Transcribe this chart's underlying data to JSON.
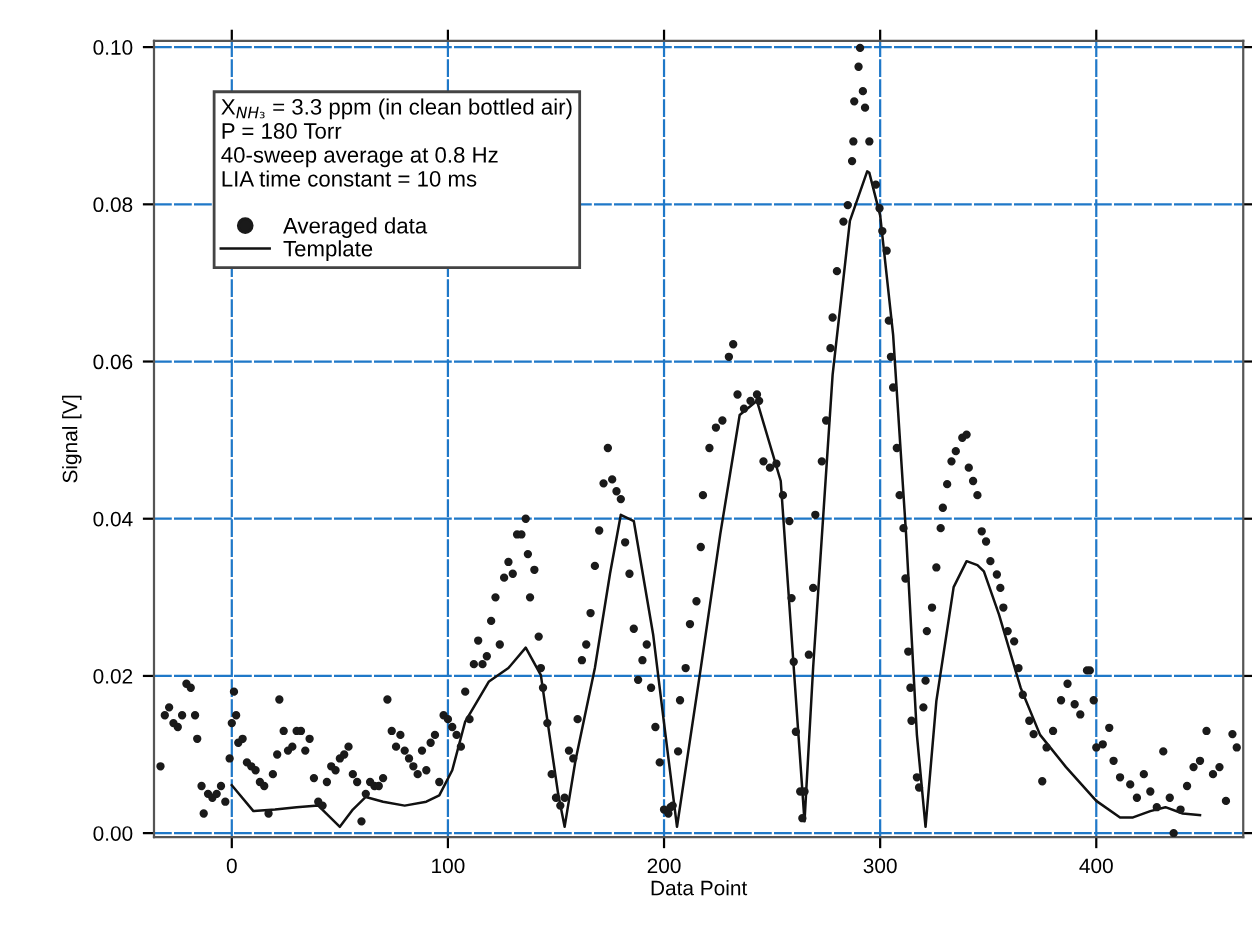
{
  "chart_data": {
    "type": "scatter",
    "xlabel": "Data Point",
    "ylabel": "Signal [V]",
    "xlim": [
      -36,
      468
    ],
    "ylim": [
      -0.0005,
      0.1008
    ],
    "xticks": [
      0,
      100,
      200,
      300,
      400
    ],
    "yticks": [
      {
        "value": 0,
        "label": "0.00"
      },
      {
        "value": 0.02,
        "label": "0.02"
      },
      {
        "value": 0.04,
        "label": "0.04"
      },
      {
        "value": 0.06,
        "label": "0.06"
      },
      {
        "value": 0.08,
        "label": "0.08"
      },
      {
        "value": 0.1,
        "label": "0.10"
      }
    ],
    "grid": true,
    "legend": "top left",
    "annotations": [
      "X$_{NH₃}$ = 3.3 ppm (in clean bottled air)",
      "P = 180 Torr",
      "40-sweep average at 0.8 Hz",
      "LIA time constant = 10 ms"
    ],
    "series": [
      {
        "name": "Averaged data",
        "marker": "circle",
        "color": "#1a1a1a",
        "x": [
          -33,
          -31,
          -29,
          -27,
          -25,
          -23,
          -21,
          -19,
          -17,
          -16,
          -14,
          -13,
          -11,
          -9,
          -7,
          -5,
          -3,
          -1,
          0,
          1,
          2,
          3,
          5,
          7,
          9,
          11,
          13,
          15,
          17,
          19,
          21,
          22,
          24,
          26,
          28,
          30,
          32,
          34,
          36,
          38,
          40,
          42,
          44,
          46,
          48,
          50,
          52,
          54,
          56,
          58,
          60,
          62,
          64,
          66,
          68,
          70,
          72,
          74,
          76,
          78,
          80,
          82,
          84,
          86,
          88,
          90,
          92,
          94,
          96,
          98,
          100,
          102,
          104,
          106,
          108,
          110,
          112,
          114,
          116,
          118,
          120,
          122,
          124,
          126,
          128,
          130,
          132,
          134,
          136,
          137,
          138,
          140,
          142,
          143,
          144,
          146,
          148,
          150,
          152,
          154,
          156,
          158,
          160,
          162,
          164,
          166,
          168,
          170,
          172,
          174,
          176,
          178,
          180,
          182,
          184,
          186,
          188,
          190,
          192,
          194,
          196,
          198,
          200,
          202,
          203,
          204,
          206.5,
          207.4,
          210,
          212,
          215,
          217,
          218,
          221,
          224,
          227,
          230,
          232,
          234,
          237,
          240,
          243,
          244,
          246,
          249,
          252,
          255,
          258,
          259,
          260,
          261,
          263,
          264,
          265,
          267,
          269,
          270,
          273,
          275,
          277,
          278,
          280,
          283,
          285,
          287,
          287.6,
          288,
          290,
          290.7,
          292,
          293,
          295,
          298,
          299.7,
          301,
          303,
          304,
          305,
          306,
          307.7,
          309,
          310.8,
          311.7,
          313,
          314,
          314.5,
          317,
          318,
          320,
          321,
          321.6,
          324,
          326,
          328,
          329,
          331,
          333,
          335,
          338,
          340,
          341,
          343,
          345,
          347,
          349,
          351,
          354,
          355.6,
          357,
          359,
          362,
          364,
          366,
          369,
          371,
          375,
          377,
          380,
          383.7,
          386.7,
          390,
          392.6,
          395.7,
          397,
          398.8,
          400,
          403,
          406,
          408,
          411,
          415.7,
          418.8,
          422,
          425,
          428,
          431,
          434,
          435.8,
          439,
          442,
          445,
          448,
          451,
          454,
          457,
          460,
          463,
          465
        ],
        "values": [
          0.0085,
          0.015,
          0.016,
          0.014,
          0.0135,
          0.015,
          0.019,
          0.0185,
          0.015,
          0.012,
          0.006,
          0.0025,
          0.005,
          0.0045,
          0.005,
          0.006,
          0.004,
          0.0095,
          0.014,
          0.018,
          0.015,
          0.0115,
          0.012,
          0.009,
          0.0085,
          0.008,
          0.0065,
          0.006,
          0.0025,
          0.0075,
          0.01,
          0.017,
          0.013,
          0.0105,
          0.011,
          0.013,
          0.013,
          0.0105,
          0.012,
          0.007,
          0.004,
          0.0035,
          0.0065,
          0.0085,
          0.008,
          0.0095,
          0.01,
          0.011,
          0.0075,
          0.0065,
          0.0015,
          0.005,
          0.0065,
          0.006,
          0.006,
          0.007,
          0.017,
          0.013,
          0.011,
          0.0125,
          0.0105,
          0.0095,
          0.0085,
          0.0075,
          0.0105,
          0.008,
          0.0115,
          0.0125,
          0.0065,
          0.015,
          0.0145,
          0.0135,
          0.0125,
          0.011,
          0.018,
          0.0145,
          0.0215,
          0.0245,
          0.0215,
          0.0225,
          0.027,
          0.03,
          0.024,
          0.0325,
          0.0345,
          0.033,
          0.038,
          0.038,
          0.04,
          0.0355,
          0.03,
          0.0335,
          0.025,
          0.021,
          0.0185,
          0.014,
          0.0075,
          0.0045,
          0.0035,
          0.0045,
          0.0105,
          0.0095,
          0.0145,
          0.022,
          0.024,
          0.028,
          0.034,
          0.0385,
          0.0445,
          0.049,
          0.045,
          0.0435,
          0.0425,
          0.037,
          0.033,
          0.026,
          0.0195,
          0.022,
          0.024,
          0.0185,
          0.0135,
          0.009,
          0.003,
          0.0025,
          0.0033,
          0.0035,
          0.0104,
          0.0169,
          0.021,
          0.0266,
          0.0295,
          0.0364,
          0.043,
          0.049,
          0.0516,
          0.0525,
          0.0606,
          0.0622,
          0.0558,
          0.054,
          0.055,
          0.0558,
          0.055,
          0.0473,
          0.0465,
          0.047,
          0.043,
          0.0397,
          0.0299,
          0.0218,
          0.0129,
          0.0053,
          0.0019,
          0.0053,
          0.0227,
          0.0312,
          0.0405,
          0.0473,
          0.0525,
          0.0617,
          0.0656,
          0.0715,
          0.0778,
          0.0799,
          0.0855,
          0.088,
          0.0931,
          0.0975,
          0.0999,
          0.0944,
          0.0923,
          0.088,
          0.0825,
          0.0795,
          0.0766,
          0.0741,
          0.0652,
          0.0606,
          0.0567,
          0.049,
          0.043,
          0.0388,
          0.0324,
          0.0231,
          0.0185,
          0.0143,
          0.0071,
          0.0058,
          0.016,
          0.0194,
          0.0257,
          0.0287,
          0.0338,
          0.0388,
          0.0414,
          0.0444,
          0.0473,
          0.0486,
          0.0503,
          0.0507,
          0.0465,
          0.0448,
          0.043,
          0.0384,
          0.0371,
          0.0346,
          0.0329,
          0.0312,
          0.0287,
          0.0257,
          0.0244,
          0.021,
          0.0176,
          0.0143,
          0.0126,
          0.0066,
          0.0109,
          0.013,
          0.0169,
          0.019,
          0.0164,
          0.0151,
          0.0207,
          0.0207,
          0.0169,
          0.0109,
          0.0113,
          0.0134,
          0.0092,
          0.0071,
          0.0062,
          0.0045,
          0.0075,
          0.0053,
          0.0033,
          0.0104,
          0.0045,
          0.0,
          0.003,
          0.006,
          0.0084,
          0.0092,
          0.013,
          0.0075,
          0.0084,
          0.0041,
          0.0126,
          0.0109
        ]
      },
      {
        "name": "Template",
        "type": "line",
        "color": "#111111",
        "marker": "none",
        "x": [
          0,
          10,
          20,
          30,
          40,
          50,
          56,
          62,
          70,
          80,
          90,
          96,
          102,
          108,
          119,
          128,
          136,
          143,
          147,
          151,
          154,
          159,
          168,
          175,
          180,
          186,
          195,
          200,
          206,
          217,
          226,
          235,
          243,
          254,
          260,
          265,
          269,
          278,
          286,
          294,
          295,
          300,
          306,
          312,
          317,
          321,
          326,
          334,
          340,
          345,
          348,
          355,
          365,
          374,
          386,
          400,
          411,
          417,
          425,
          432,
          440,
          448
        ],
        "values": [
          0.0061,
          0.0028,
          0.003,
          0.0033,
          0.0035,
          0.0008,
          0.003,
          0.0046,
          0.004,
          0.0035,
          0.004,
          0.0048,
          0.008,
          0.0142,
          0.0193,
          0.021,
          0.0236,
          0.0201,
          0.0125,
          0.005,
          0.0008,
          0.0092,
          0.021,
          0.033,
          0.0405,
          0.0397,
          0.0252,
          0.014,
          0.0008,
          0.021,
          0.038,
          0.0532,
          0.055,
          0.0448,
          0.0211,
          0.0015,
          0.0211,
          0.0583,
          0.0779,
          0.0842,
          0.084,
          0.0786,
          0.0634,
          0.038,
          0.0125,
          0.0008,
          0.0168,
          0.0313,
          0.0346,
          0.0341,
          0.0333,
          0.0278,
          0.0185,
          0.0125,
          0.0084,
          0.0041,
          0.002,
          0.002,
          0.0028,
          0.0033,
          0.0025,
          0.0023
        ]
      }
    ]
  }
}
